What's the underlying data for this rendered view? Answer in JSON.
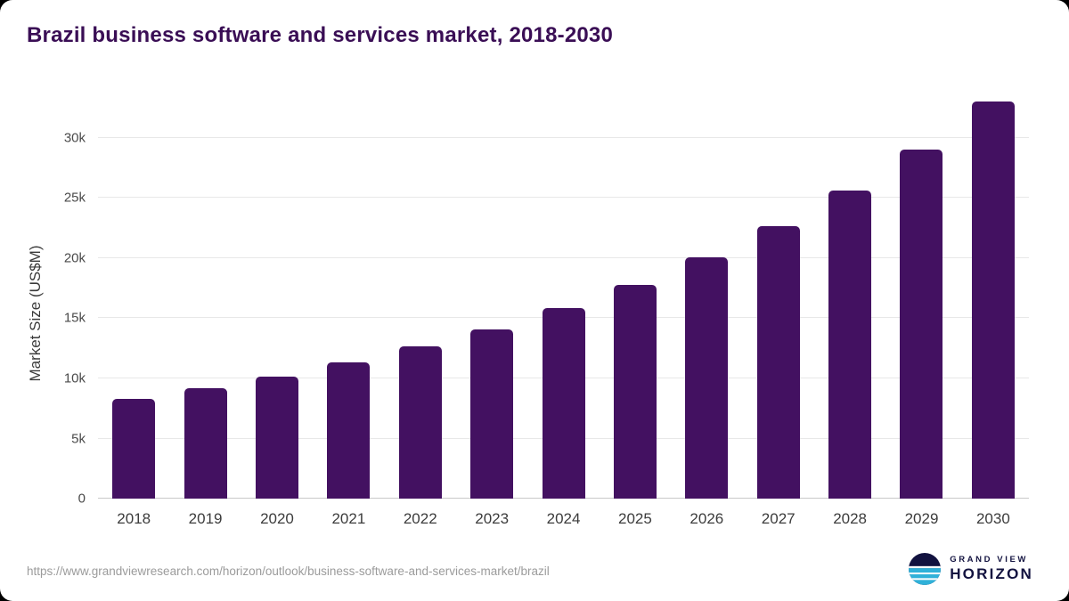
{
  "title": "Brazil business software and services market, 2018-2030",
  "chart_data": {
    "type": "bar",
    "title": "Brazil business software and services market, 2018-2030",
    "categories": [
      "2018",
      "2019",
      "2020",
      "2021",
      "2022",
      "2023",
      "2024",
      "2025",
      "2026",
      "2027",
      "2028",
      "2029",
      "2030"
    ],
    "values": [
      8300,
      9200,
      10150,
      11350,
      12650,
      14100,
      15850,
      17800,
      20100,
      22650,
      25600,
      29000,
      33000
    ],
    "xlabel": "",
    "ylabel": "Market Size (US$M)",
    "ylim": [
      0,
      33700
    ],
    "yticks": [
      {
        "value": 0,
        "label": "0"
      },
      {
        "value": 5000,
        "label": "5k"
      },
      {
        "value": 10000,
        "label": "10k"
      },
      {
        "value": 15000,
        "label": "15k"
      },
      {
        "value": 20000,
        "label": "20k"
      },
      {
        "value": 25000,
        "label": "25k"
      },
      {
        "value": 30000,
        "label": "30k"
      }
    ],
    "grid": true,
    "legend": "none",
    "bar_color": "#431161"
  },
  "colors": {
    "title": "#3a0e55",
    "bar": "#431161",
    "gridline": "#e8e8e8",
    "axis_text": "#3c3c3c",
    "source_text": "#9b9b9b",
    "logo_navy": "#12123f",
    "logo_cyan": "#2fb1d9",
    "background": "#ffffff"
  },
  "footer": {
    "source_url": "https://www.grandviewresearch.com/horizon/outlook/business-software-and-services-market/brazil",
    "logo": {
      "line1": "GRAND VIEW",
      "line2": "HORIZON"
    }
  }
}
